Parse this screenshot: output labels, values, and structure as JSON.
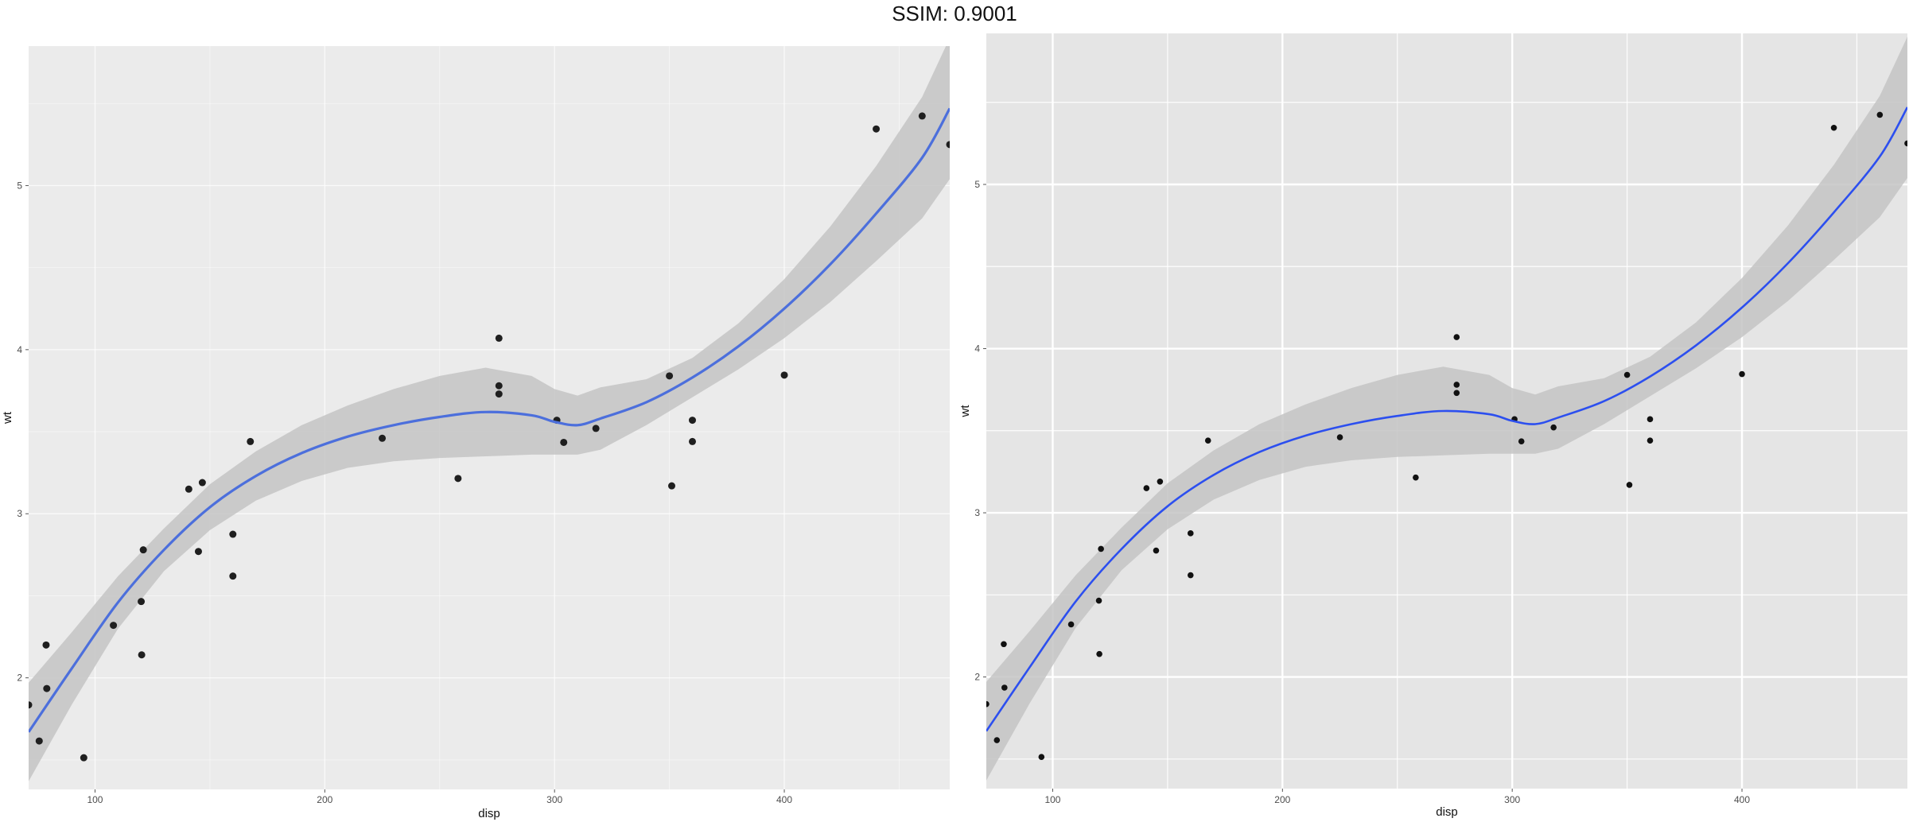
{
  "title": "SSIM: 0.9001",
  "chart_data": [
    {
      "type": "scatter",
      "xlabel": "disp",
      "ylabel": "wt",
      "xlim": [
        71.1,
        472
      ],
      "ylim": [
        1.32,
        5.85
      ],
      "xticks": [
        100,
        200,
        300,
        400
      ],
      "yticks": [
        2,
        3,
        4,
        5
      ],
      "grid": true,
      "points": [
        [
          160,
          2.62
        ],
        [
          160,
          2.875
        ],
        [
          108,
          2.32
        ],
        [
          258,
          3.215
        ],
        [
          360,
          3.44
        ],
        [
          225,
          3.46
        ],
        [
          360,
          3.57
        ],
        [
          146.7,
          3.19
        ],
        [
          140.8,
          3.15
        ],
        [
          167.6,
          3.44
        ],
        [
          275.8,
          4.07
        ],
        [
          275.8,
          3.73
        ],
        [
          275.8,
          3.78
        ],
        [
          472,
          5.25
        ],
        [
          460,
          5.424
        ],
        [
          440,
          5.345
        ],
        [
          78.7,
          2.2
        ],
        [
          75.7,
          1.615
        ],
        [
          71.1,
          1.835
        ],
        [
          120.1,
          2.465
        ],
        [
          318,
          3.52
        ],
        [
          304,
          3.435
        ],
        [
          350,
          3.84
        ],
        [
          400,
          3.845
        ],
        [
          79,
          1.935
        ],
        [
          120.3,
          2.14
        ],
        [
          95.1,
          1.513
        ],
        [
          351,
          3.17
        ],
        [
          145,
          2.77
        ],
        [
          301,
          3.57
        ],
        [
          121,
          2.78
        ]
      ],
      "smooth": {
        "x": [
          71.1,
          90,
          110,
          130,
          150,
          170,
          190,
          210,
          230,
          250,
          270,
          290,
          300,
          310,
          320,
          340,
          360,
          380,
          400,
          420,
          440,
          460,
          472
        ],
        "y": [
          1.67,
          2.06,
          2.46,
          2.78,
          3.04,
          3.23,
          3.37,
          3.47,
          3.54,
          3.59,
          3.62,
          3.6,
          3.56,
          3.54,
          3.58,
          3.68,
          3.83,
          4.02,
          4.25,
          4.52,
          4.83,
          5.17,
          5.47
        ],
        "se": [
          0.3,
          0.22,
          0.16,
          0.13,
          0.14,
          0.15,
          0.17,
          0.19,
          0.22,
          0.25,
          0.27,
          0.24,
          0.2,
          0.18,
          0.19,
          0.14,
          0.12,
          0.14,
          0.18,
          0.23,
          0.29,
          0.37,
          0.43
        ]
      }
    },
    {
      "type": "scatter",
      "xlabel": "disp",
      "ylabel": "wt",
      "xlim": [
        71.1,
        472
      ],
      "ylim": [
        1.32,
        5.92
      ],
      "xticks": [
        100,
        200,
        300,
        400
      ],
      "yticks": [
        2,
        3,
        4,
        5
      ],
      "grid": true,
      "points": [
        [
          160,
          2.62
        ],
        [
          160,
          2.875
        ],
        [
          108,
          2.32
        ],
        [
          258,
          3.215
        ],
        [
          360,
          3.44
        ],
        [
          225,
          3.46
        ],
        [
          360,
          3.57
        ],
        [
          146.7,
          3.19
        ],
        [
          140.8,
          3.15
        ],
        [
          167.6,
          3.44
        ],
        [
          275.8,
          4.07
        ],
        [
          275.8,
          3.73
        ],
        [
          275.8,
          3.78
        ],
        [
          472,
          5.25
        ],
        [
          460,
          5.424
        ],
        [
          440,
          5.345
        ],
        [
          78.7,
          2.2
        ],
        [
          75.7,
          1.615
        ],
        [
          71.1,
          1.835
        ],
        [
          120.1,
          2.465
        ],
        [
          318,
          3.52
        ],
        [
          304,
          3.435
        ],
        [
          350,
          3.84
        ],
        [
          400,
          3.845
        ],
        [
          79,
          1.935
        ],
        [
          120.3,
          2.14
        ],
        [
          95.1,
          1.513
        ],
        [
          351,
          3.17
        ],
        [
          145,
          2.77
        ],
        [
          301,
          3.57
        ],
        [
          121,
          2.78
        ]
      ],
      "smooth": {
        "x": [
          71.1,
          90,
          110,
          130,
          150,
          170,
          190,
          210,
          230,
          250,
          270,
          290,
          300,
          310,
          320,
          340,
          360,
          380,
          400,
          420,
          440,
          460,
          472
        ],
        "y": [
          1.67,
          2.06,
          2.46,
          2.78,
          3.04,
          3.23,
          3.37,
          3.47,
          3.54,
          3.59,
          3.62,
          3.6,
          3.56,
          3.54,
          3.58,
          3.68,
          3.83,
          4.02,
          4.25,
          4.52,
          4.83,
          5.17,
          5.47
        ],
        "se": [
          0.3,
          0.22,
          0.16,
          0.13,
          0.14,
          0.15,
          0.17,
          0.19,
          0.22,
          0.25,
          0.27,
          0.24,
          0.2,
          0.18,
          0.19,
          0.14,
          0.12,
          0.14,
          0.18,
          0.23,
          0.29,
          0.37,
          0.43
        ]
      }
    }
  ],
  "colors": {
    "panel_left": "#ebebeb",
    "panel_right": "#e5e5e5",
    "band": "#c4c4c4",
    "line_left": "#4c6fdc",
    "line_right": "#2c4fef",
    "point_left": "#1f1f1f",
    "point_right": "#111111",
    "grid": "#ffffff"
  }
}
